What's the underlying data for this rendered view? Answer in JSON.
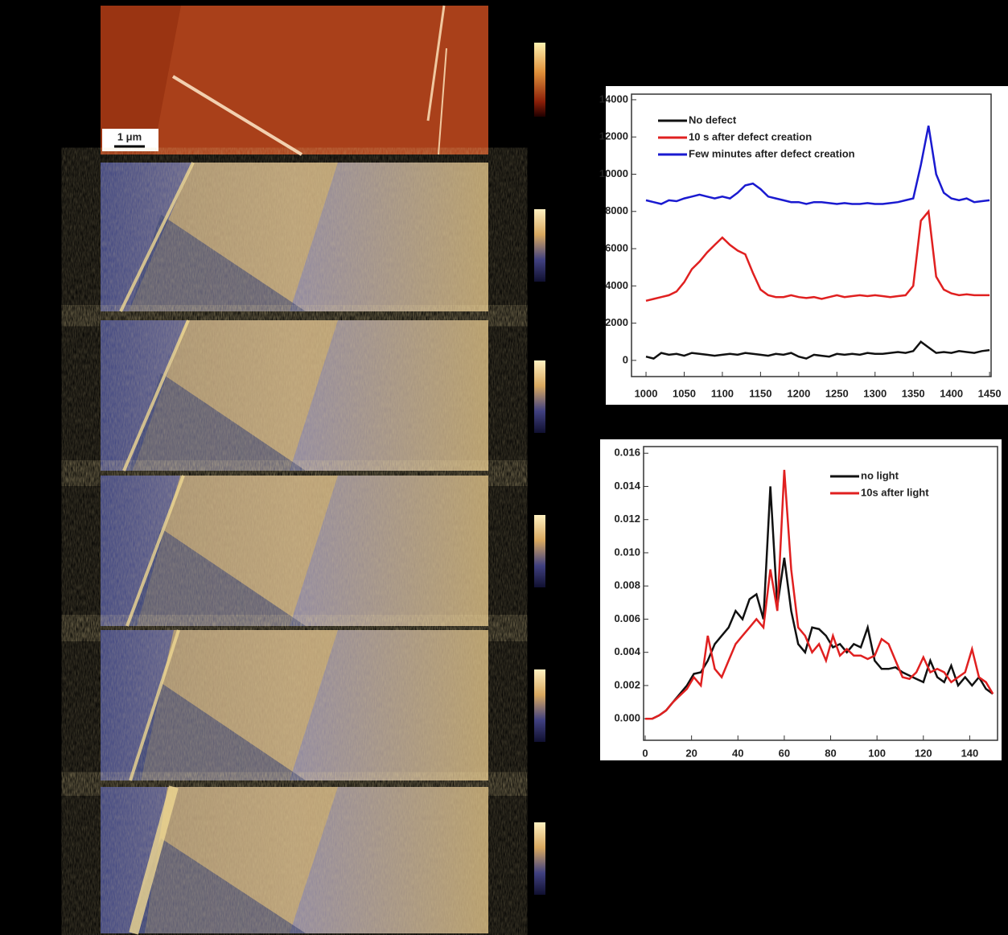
{
  "scale_bar_label": "1 μm",
  "chart_data": [
    {
      "type": "line",
      "x": [
        1000,
        1010,
        1020,
        1030,
        1040,
        1050,
        1060,
        1070,
        1080,
        1090,
        1100,
        1110,
        1120,
        1130,
        1140,
        1150,
        1160,
        1170,
        1180,
        1190,
        1200,
        1210,
        1220,
        1230,
        1240,
        1250,
        1260,
        1270,
        1280,
        1290,
        1300,
        1310,
        1320,
        1330,
        1340,
        1350,
        1360,
        1370,
        1380,
        1390,
        1400,
        1410,
        1420,
        1430,
        1440,
        1450
      ],
      "series": [
        {
          "name": "No defect",
          "color": "#111111",
          "values": [
            200,
            100,
            400,
            300,
            350,
            250,
            400,
            350,
            300,
            250,
            300,
            350,
            300,
            400,
            350,
            300,
            250,
            350,
            300,
            400,
            200,
            100,
            300,
            250,
            200,
            350,
            300,
            350,
            300,
            400,
            350,
            350,
            400,
            450,
            400,
            500,
            1000,
            700,
            400,
            450,
            400,
            500,
            450,
            400,
            500,
            550
          ]
        },
        {
          "name": "10 s after defect creation",
          "color": "#e02020",
          "values": [
            3200,
            3300,
            3400,
            3500,
            3700,
            4200,
            4900,
            5300,
            5800,
            6200,
            6600,
            6200,
            5900,
            5700,
            4700,
            3800,
            3500,
            3400,
            3400,
            3500,
            3400,
            3350,
            3400,
            3300,
            3400,
            3500,
            3400,
            3450,
            3500,
            3450,
            3500,
            3450,
            3400,
            3450,
            3500,
            4000,
            7500,
            8000,
            4500,
            3800,
            3600,
            3500,
            3550,
            3500,
            3500,
            3500
          ]
        },
        {
          "name": "Few minutes after defect creation",
          "color": "#1a1ad0",
          "values": [
            8600,
            8500,
            8400,
            8600,
            8550,
            8700,
            8800,
            8900,
            8800,
            8700,
            8800,
            8700,
            9000,
            9400,
            9500,
            9200,
            8800,
            8700,
            8600,
            8500,
            8500,
            8400,
            8500,
            8500,
            8450,
            8400,
            8450,
            8400,
            8400,
            8450,
            8400,
            8400,
            8450,
            8500,
            8600,
            8700,
            10500,
            12600,
            10000,
            9000,
            8700,
            8600,
            8700,
            8500,
            8550,
            8600
          ]
        }
      ],
      "xlim": [
        981,
        1452
      ],
      "ylim": [
        -870,
        14300
      ],
      "xticks": [
        1000,
        1050,
        1100,
        1150,
        1200,
        1250,
        1300,
        1350,
        1400,
        1450
      ],
      "yticks": [
        0,
        2000,
        4000,
        6000,
        8000,
        10000,
        12000,
        14000
      ],
      "legend": "upper left"
    },
    {
      "type": "line",
      "x": [
        0,
        3,
        6,
        9,
        12,
        15,
        18,
        21,
        24,
        27,
        30,
        33,
        36,
        39,
        42,
        45,
        48,
        51,
        54,
        57,
        60,
        63,
        66,
        69,
        72,
        75,
        78,
        81,
        84,
        87,
        90,
        93,
        96,
        99,
        102,
        105,
        108,
        111,
        114,
        117,
        120,
        123,
        126,
        129,
        132,
        135,
        138,
        141,
        144,
        147,
        150
      ],
      "series": [
        {
          "name": "no light",
          "color": "#111111",
          "values": [
            0,
            0,
            0.0002,
            0.0005,
            0.001,
            0.0015,
            0.002,
            0.0027,
            0.0028,
            0.0035,
            0.0045,
            0.005,
            0.0055,
            0.0065,
            0.006,
            0.0072,
            0.0075,
            0.006,
            0.014,
            0.0068,
            0.0097,
            0.0065,
            0.0045,
            0.004,
            0.0055,
            0.0054,
            0.005,
            0.0043,
            0.0045,
            0.004,
            0.0045,
            0.0043,
            0.0055,
            0.0035,
            0.003,
            0.003,
            0.0031,
            0.0028,
            0.0026,
            0.0024,
            0.0022,
            0.0035,
            0.0025,
            0.0022,
            0.0032,
            0.002,
            0.0025,
            0.002,
            0.0025,
            0.0018,
            0.0015
          ]
        },
        {
          "name": "10s after light",
          "color": "#e02020",
          "values": [
            0,
            0,
            0.0002,
            0.0005,
            0.001,
            0.0014,
            0.0018,
            0.0025,
            0.002,
            0.005,
            0.003,
            0.0025,
            0.0035,
            0.0045,
            0.005,
            0.0055,
            0.006,
            0.0055,
            0.009,
            0.0065,
            0.015,
            0.009,
            0.0055,
            0.005,
            0.004,
            0.0045,
            0.0035,
            0.005,
            0.0038,
            0.0042,
            0.0038,
            0.0038,
            0.0036,
            0.0038,
            0.0048,
            0.0045,
            0.0035,
            0.0025,
            0.0024,
            0.0028,
            0.0037,
            0.0028,
            0.003,
            0.0028,
            0.0022,
            0.0025,
            0.0028,
            0.0042,
            0.0025,
            0.0022,
            0.0015
          ]
        }
      ],
      "xlim": [
        -0.7,
        152
      ],
      "ylim": [
        -0.0013,
        0.0164
      ],
      "xticks": [
        0,
        20,
        40,
        60,
        80,
        100,
        120,
        140
      ],
      "yticks": [
        {
          "value": 0,
          "label": "0.000"
        },
        0.002,
        0.004,
        0.006,
        0.008,
        {
          "value": 0.01,
          "label": "0.010"
        },
        0.012,
        0.014,
        0.016
      ],
      "legend": "upper right"
    }
  ]
}
